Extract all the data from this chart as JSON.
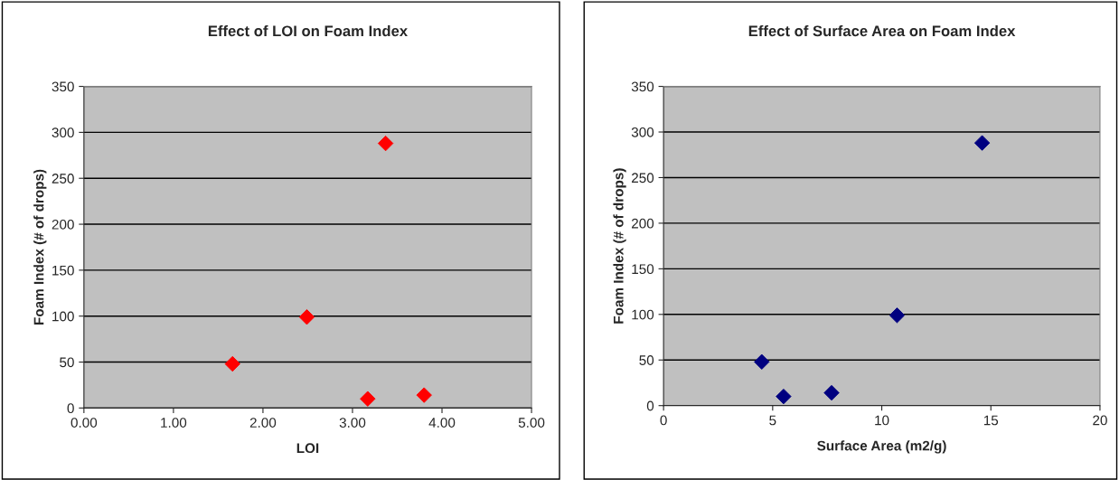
{
  "chart_data": [
    {
      "type": "scatter",
      "title": "Effect of LOI on Foam Index",
      "xlabel": "LOI",
      "ylabel": "Foam Index (# of drops)",
      "x": [
        1.66,
        2.49,
        3.17,
        3.37,
        3.8
      ],
      "series": [
        {
          "color": "#ff0000",
          "values": [
            48,
            99,
            10,
            288,
            14
          ]
        }
      ],
      "xlim": [
        0,
        5
      ],
      "xticks": [
        {
          "value": 0,
          "label": "0.00"
        },
        {
          "value": 1,
          "label": "1.00"
        },
        {
          "value": 2,
          "label": "2.00"
        },
        {
          "value": 3,
          "label": "3.00"
        },
        {
          "value": 4,
          "label": "4.00"
        },
        {
          "value": 5,
          "label": "5.00"
        }
      ],
      "ylim": [
        0,
        350
      ],
      "yticks": [
        0,
        50,
        100,
        150,
        200,
        250,
        300,
        350
      ],
      "grid": "y",
      "marker": "diamond"
    },
    {
      "type": "scatter",
      "title": "Effect of Surface Area on Foam Index",
      "xlabel": "Surface Area (m2/g)",
      "ylabel": "Foam Index (# of drops)",
      "x": [
        4.5,
        5.5,
        7.7,
        10.7,
        14.6
      ],
      "series": [
        {
          "color": "#000080",
          "values": [
            48,
            10,
            14,
            99,
            288
          ]
        }
      ],
      "xlim": [
        0,
        20
      ],
      "xticks": [
        0,
        5,
        10,
        15,
        20
      ],
      "ylim": [
        0,
        350
      ],
      "yticks": [
        0,
        50,
        100,
        150,
        200,
        250,
        300,
        350
      ],
      "grid": "y",
      "marker": "diamond"
    }
  ]
}
